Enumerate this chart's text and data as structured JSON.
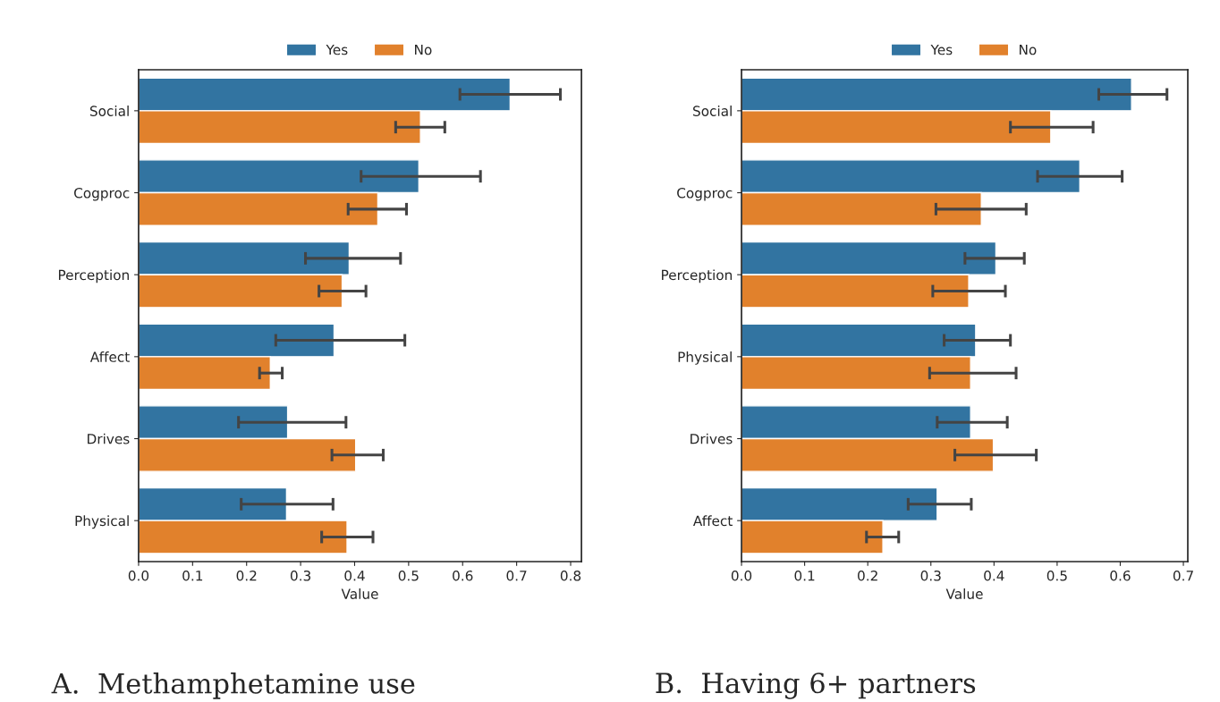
{
  "chart_data": [
    {
      "type": "bar",
      "orientation": "horizontal",
      "title": "A.  Methamphetamine use",
      "xlabel": "Value",
      "legend": "top",
      "categories": [
        "Social",
        "Cogproc",
        "Perception",
        "Affect",
        "Drives",
        "Physical"
      ],
      "xlim": [
        0,
        0.82
      ],
      "xticks": [
        {
          "value": 0,
          "label": "0.0"
        },
        0.1,
        0.2,
        0.3,
        0.4,
        0.5,
        0.6,
        0.7,
        0.8
      ],
      "series": [
        {
          "name": "Yes",
          "color": "#3274a1",
          "values": [
            0.688,
            0.519,
            0.39,
            0.362,
            0.276,
            0.274
          ],
          "errors": [
            [
              0.595,
              0.781
            ],
            [
              0.412,
              0.633
            ],
            [
              0.309,
              0.485
            ],
            [
              0.254,
              0.493
            ],
            [
              0.185,
              0.384
            ],
            [
              0.19,
              0.36
            ]
          ]
        },
        {
          "name": "No",
          "color": "#e1812c",
          "values": [
            0.522,
            0.443,
            0.377,
            0.244,
            0.402,
            0.386
          ],
          "errors": [
            [
              0.476,
              0.567
            ],
            [
              0.388,
              0.496
            ],
            [
              0.334,
              0.421
            ],
            [
              0.224,
              0.266
            ],
            [
              0.358,
              0.453
            ],
            [
              0.339,
              0.434
            ]
          ]
        }
      ]
    },
    {
      "type": "bar",
      "orientation": "horizontal",
      "title": "B.  Having 6+ partners",
      "xlabel": "Value",
      "legend": "top",
      "categories": [
        "Social",
        "Cogproc",
        "Perception",
        "Physical",
        "Drives",
        "Affect"
      ],
      "xlim": [
        0,
        0.707
      ],
      "xticks": [
        {
          "value": 0,
          "label": "0.0"
        },
        0.1,
        0.2,
        0.3,
        0.4,
        0.5,
        0.6,
        0.7
      ],
      "series": [
        {
          "name": "Yes",
          "color": "#3274a1",
          "values": [
            0.618,
            0.536,
            0.403,
            0.371,
            0.363,
            0.31
          ],
          "errors": [
            [
              0.566,
              0.674
            ],
            [
              0.469,
              0.603
            ],
            [
              0.354,
              0.448
            ],
            [
              0.321,
              0.426
            ],
            [
              0.31,
              0.421
            ],
            [
              0.264,
              0.364
            ]
          ]
        },
        {
          "name": "No",
          "color": "#e1812c",
          "values": [
            0.49,
            0.38,
            0.36,
            0.363,
            0.399,
            0.224
          ],
          "errors": [
            [
              0.426,
              0.557
            ],
            [
              0.308,
              0.451
            ],
            [
              0.303,
              0.418
            ],
            [
              0.298,
              0.435
            ],
            [
              0.338,
              0.467
            ],
            [
              0.198,
              0.249
            ]
          ]
        }
      ]
    }
  ]
}
